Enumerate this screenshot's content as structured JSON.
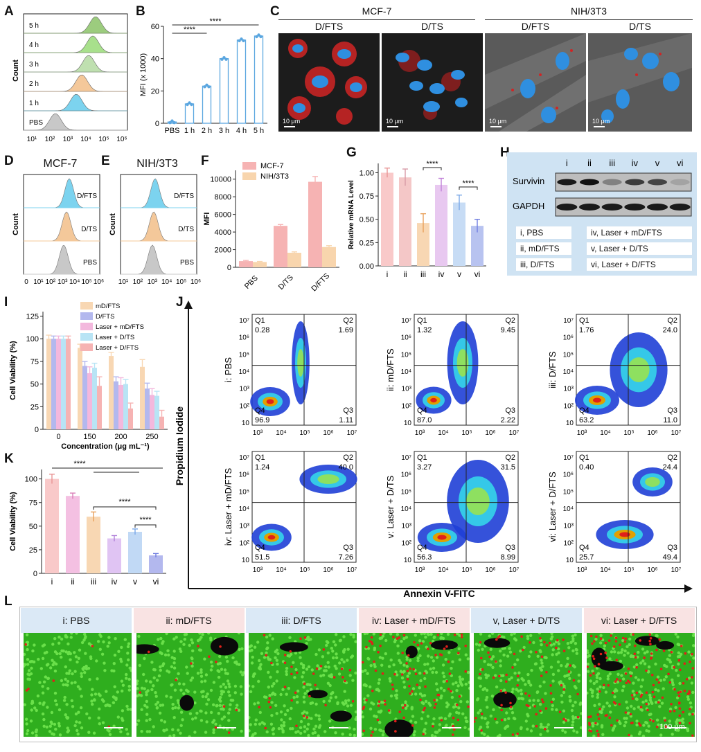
{
  "panels": {
    "A": {
      "letter": "A",
      "ylabel": "Count",
      "rows": [
        "5 h",
        "4 h",
        "3 h",
        "2 h",
        "1 h",
        "PBS"
      ],
      "xticks": [
        "10¹",
        "10²",
        "10³",
        "10⁴",
        "10⁵",
        "10⁶"
      ],
      "colors": [
        "#9ccc7e",
        "#a8e08c",
        "#bfe0b0",
        "#f4c89a",
        "#7cd3ef",
        "#c8c8c8"
      ]
    },
    "B": {
      "letter": "B",
      "ylabel": "MFI (x 1000)",
      "sig1": "****",
      "sig2": "****"
    },
    "C": {
      "letter": "C",
      "group1": "MCF-7",
      "group2": "NIH/3T3",
      "images": [
        {
          "label": "D/FTS",
          "scale": "10 μm"
        },
        {
          "label": "D/TS",
          "scale": "10 μm"
        },
        {
          "label": "D/FTS",
          "scale": "10 μm"
        },
        {
          "label": "D/TS",
          "scale": "10 μm"
        }
      ]
    },
    "D": {
      "letter": "D",
      "title": "MCF-7",
      "ylabel": "Count",
      "rows": [
        "D/FTS",
        "D/TS",
        "PBS"
      ],
      "xticks": [
        "0",
        "10¹",
        "10²",
        "10³",
        "10⁴",
        "10⁵",
        "10⁶"
      ]
    },
    "E": {
      "letter": "E",
      "title": "NIH/3T3",
      "ylabel": "Count",
      "rows": [
        "D/FTS",
        "D/TS",
        "PBS"
      ],
      "xticks": [
        "10¹",
        "10²",
        "10³",
        "10⁴",
        "10⁵",
        "10⁶"
      ]
    },
    "F": {
      "letter": "F",
      "ylabel": "MFI",
      "legend": [
        "MCF-7",
        "NIH/3T3"
      ]
    },
    "G": {
      "letter": "G",
      "ylabel": "Relative mRNA Level",
      "sig1": "****",
      "sig2": "****"
    },
    "H": {
      "letter": "H",
      "lanes": [
        "i",
        "ii",
        "iii",
        "iv",
        "v",
        "vi"
      ],
      "row1": "Survivin",
      "row2": "GAPDH",
      "legend_left": [
        "i, PBS",
        "ii, mD/FTS",
        "iii, D/FTS"
      ],
      "legend_right": [
        "iv, Laser + mD/FTS",
        "v, Laser + D/TS",
        "vi, Laser + D/FTS"
      ]
    },
    "I": {
      "letter": "I",
      "ylabel": "Cell Viability (%)",
      "xlabel": "Concentration (μg mL⁻¹)"
    },
    "J": {
      "letter": "J",
      "ylabel": "Propidium Iodide",
      "xlabel": "Annexin V-FITC",
      "yticks": [
        "10⁷",
        "10⁶",
        "10⁵",
        "10⁴",
        "10³",
        "10²",
        "10"
      ],
      "xticks": [
        "10³",
        "10⁴",
        "10⁵",
        "10⁶",
        "10⁷"
      ],
      "plots": [
        {
          "name": "i: PBS",
          "q1": "0.28",
          "q2": "1.69",
          "q3": "1.11",
          "q4": "96.9"
        },
        {
          "name": "ii: mD/FTS",
          "q1": "1.32",
          "q2": "9.45",
          "q3": "2.22",
          "q4": "87.0"
        },
        {
          "name": "iii: D/FTS",
          "q1": "1.76",
          "q2": "24.0",
          "q3": "11.0",
          "q4": "63.2"
        },
        {
          "name": "iv: Laser + mD/FTS",
          "q1": "1.24",
          "q2": "40.0",
          "q3": "7.26",
          "q4": "51.5"
        },
        {
          "name": "v: Laser + D/TS",
          "q1": "3.27",
          "q2": "31.5",
          "q3": "8.99",
          "q4": "56.3"
        },
        {
          "name": "vi: Laser + D/FTS",
          "q1": "0.40",
          "q2": "24.4",
          "q3": "49.4",
          "q4": "25.7"
        }
      ]
    },
    "K": {
      "letter": "K",
      "ylabel": "Cell Viability (%)",
      "sig1": "****",
      "sig2": "****",
      "sig3": "****"
    },
    "L": {
      "letter": "L",
      "scale": "100 μm",
      "headers": [
        "i: PBS",
        "ii: mD/FTS",
        "iii: D/FTS",
        "iv: Laser + mD/FTS",
        "v, Laser + D/TS",
        "vi: Laser + D/FTS"
      ]
    }
  },
  "chart_data": [
    {
      "type": "bar",
      "panel": "B",
      "categories": [
        "PBS",
        "1 h",
        "2 h",
        "3 h",
        "4 h",
        "5 h"
      ],
      "values": [
        0.8,
        12,
        23,
        40,
        51.5,
        54
      ],
      "ylabel": "MFI (x 1000)",
      "ylim": [
        0,
        60
      ],
      "yticks": [
        0,
        20,
        40,
        60
      ]
    },
    {
      "type": "bar",
      "panel": "F",
      "categories": [
        "PBS",
        "D/TS",
        "D/FTS"
      ],
      "series": [
        {
          "name": "MCF-7",
          "values": [
            700,
            4700,
            9700
          ],
          "errors": [
            80,
            150,
            600
          ],
          "color": "#f6b3b3"
        },
        {
          "name": "NIH/3T3",
          "values": [
            600,
            1650,
            2300
          ],
          "errors": [
            60,
            100,
            150
          ],
          "color": "#f8d5ad"
        }
      ],
      "ylabel": "MFI",
      "ylim": [
        0,
        11000
      ],
      "yticks": [
        0,
        2000,
        4000,
        6000,
        8000,
        10000
      ]
    },
    {
      "type": "bar",
      "panel": "G",
      "categories": [
        "i",
        "ii",
        "iii",
        "iv",
        "v",
        "vi"
      ],
      "values": [
        1.0,
        0.95,
        0.46,
        0.87,
        0.68,
        0.43
      ],
      "errors": [
        0.05,
        0.09,
        0.1,
        0.07,
        0.08,
        0.07
      ],
      "colors": [
        "#f9c9c9",
        "#f4c7c7",
        "#f8d7b3",
        "#e8c8f0",
        "#c7dcf5",
        "#b8c3f0"
      ],
      "ylabel": "Relative mRNA Level",
      "ylim": [
        0,
        1.1
      ],
      "yticks": [
        0,
        0.25,
        0.5,
        0.75,
        1.0
      ]
    },
    {
      "type": "bar",
      "panel": "I",
      "categories": [
        "0",
        "150",
        "200",
        "250"
      ],
      "series": [
        {
          "name": "mD/FTS",
          "values": [
            100,
            90,
            81,
            69
          ],
          "errors": [
            4,
            4,
            4,
            8
          ],
          "color": "#f8d7b3"
        },
        {
          "name": "D/FTS",
          "values": [
            100,
            70,
            53,
            45
          ],
          "errors": [
            3,
            5,
            5,
            6
          ],
          "color": "#b3b8ee"
        },
        {
          "name": "Laser + mD/FTS",
          "values": [
            100,
            62,
            49,
            38
          ],
          "errors": [
            3,
            7,
            8,
            7
          ],
          "color": "#f3b8dd"
        },
        {
          "name": "Laser + D/TS",
          "values": [
            100,
            68,
            50,
            37
          ],
          "errors": [
            3,
            5,
            5,
            5
          ],
          "color": "#b8e4f5"
        },
        {
          "name": "Laser + D/FTS",
          "values": [
            100,
            48,
            23,
            14
          ],
          "errors": [
            3,
            10,
            6,
            7
          ],
          "color": "#f6b3b3"
        }
      ],
      "ylabel": "Cell Viability (%)",
      "xlabel": "Concentration (μg mL⁻¹)",
      "ylim": [
        0,
        130
      ],
      "yticks": [
        0,
        25,
        50,
        75,
        100,
        125
      ]
    },
    {
      "type": "bar",
      "panel": "K",
      "categories": [
        "i",
        "ii",
        "iii",
        "iv",
        "v",
        "vi"
      ],
      "values": [
        100,
        82,
        60,
        37,
        44,
        19
      ],
      "errors": [
        5,
        3,
        5,
        3,
        3,
        2
      ],
      "colors": [
        "#f9c9c9",
        "#f4c0e2",
        "#f8d7b3",
        "#e0c4f3",
        "#c1d9f5",
        "#b3b8ee"
      ],
      "ylabel": "Cell Viability (%)",
      "ylim": [
        0,
        110
      ],
      "yticks": [
        0,
        25,
        50,
        75,
        100
      ]
    }
  ]
}
